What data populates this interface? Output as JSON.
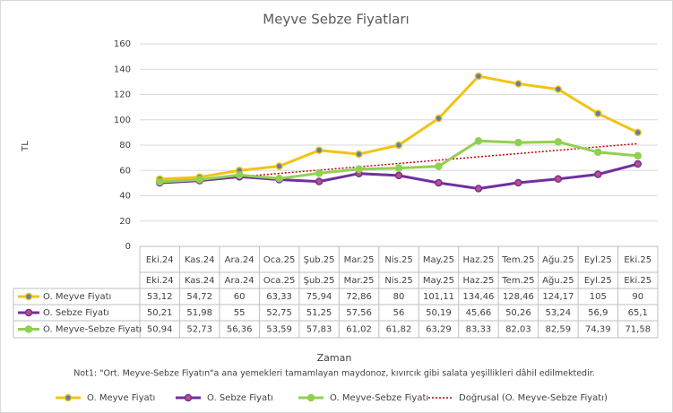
{
  "chart_data": {
    "type": "line",
    "title": "Meyve Sebze Fiyatları",
    "y_label": "TL",
    "x_label": "Zaman",
    "note": "Not1: \"Ort. Meyve-Sebze Fiyatın\"a ana yemekleri tamamlayan maydonoz, kıvırcık gibi salata yeşillikleri dâhil edilmektedir.",
    "categories": [
      "Eki.24",
      "Kas.24",
      "Ara.24",
      "Oca.25",
      "Şub.25",
      "Mar.25",
      "Nis.25",
      "May.25",
      "Haz.25",
      "Tem.25",
      "Ağu.25",
      "Eyl.25",
      "Eki.25"
    ],
    "series": [
      {
        "name": "O. Meyve Fiyatı",
        "color": "#f2c314",
        "marker": "#5b7fae",
        "values": [
          53.12,
          54.72,
          60,
          63.33,
          75.94,
          72.86,
          80,
          101.11,
          134.46,
          128.46,
          124.17,
          105,
          90
        ],
        "value_labels": [
          "53,12",
          "54,72",
          "60",
          "63,33",
          "75,94",
          "72,86",
          "80",
          "101,11",
          "134,46",
          "128,46",
          "124,17",
          "105",
          "90"
        ]
      },
      {
        "name": "O. Sebze Fiyatı",
        "color": "#7030a0",
        "marker": "#c0507a",
        "values": [
          50.21,
          51.98,
          55,
          52.75,
          51.25,
          57.56,
          56,
          50.19,
          45.66,
          50.26,
          53.24,
          56.9,
          65.1
        ],
        "value_labels": [
          "50,21",
          "51,98",
          "55",
          "52,75",
          "51,25",
          "57,56",
          "56",
          "50,19",
          "45,66",
          "50,26",
          "53,24",
          "56,9",
          "65,1"
        ]
      },
      {
        "name": "O. Meyve-Sebze Fiyatı",
        "color": "#92d050",
        "marker": "#92d050",
        "values": [
          50.94,
          52.73,
          56.36,
          53.59,
          57.83,
          61.02,
          61.82,
          63.29,
          83.33,
          82.03,
          82.59,
          74.39,
          71.58
        ],
        "value_labels": [
          "50,94",
          "52,73",
          "56,36",
          "53,59",
          "57,83",
          "61,02",
          "61,82",
          "63,29",
          "83,33",
          "82,03",
          "82,59",
          "74,39",
          "71,58"
        ]
      }
    ],
    "trendline": {
      "name": "Doğrusal (O. Meyve-Sebze Fiyatı)",
      "series": 2,
      "color": "#c00000"
    },
    "ylim": [
      0,
      160
    ],
    "yticks": [
      0,
      20,
      40,
      60,
      80,
      100,
      120,
      140,
      160
    ],
    "grid": true
  }
}
